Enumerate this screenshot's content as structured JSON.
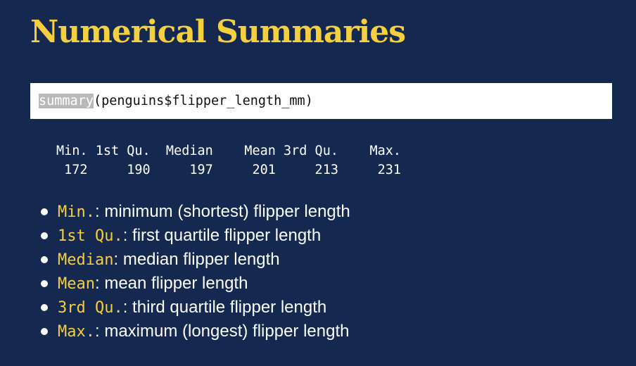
{
  "title": "Numerical Summaries",
  "code": {
    "function": "summary",
    "args": "(penguins$flipper_length_mm)"
  },
  "output": {
    "header": "Min. 1st Qu.  Median    Mean 3rd Qu.    Max.",
    "values": " 172     190     197     201     213     231"
  },
  "bullets": [
    {
      "term": "Min.",
      "description": ": minimum (shortest) flipper length"
    },
    {
      "term": "1st Qu.",
      "description": ": first quartile flipper length"
    },
    {
      "term": "Median",
      "description": ": median flipper length"
    },
    {
      "term": "Mean",
      "description": ": mean flipper length"
    },
    {
      "term": "3rd Qu.",
      "description": ": third quartile flipper length"
    },
    {
      "term": "Max.",
      "description": ": maximum (longest) flipper length"
    }
  ],
  "colors": {
    "background": "#15284f",
    "accent": "#f5cf3d",
    "code_background": "#ffffff",
    "highlight": "#b9b9b9"
  }
}
